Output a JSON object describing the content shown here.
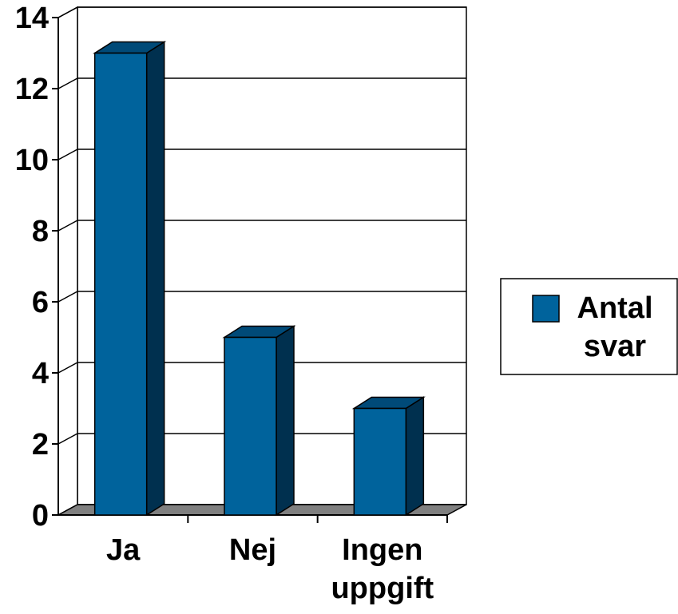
{
  "chart_data": {
    "type": "bar3d",
    "categories": [
      "Ja",
      "Nej",
      "Ingen uppgift"
    ],
    "series": [
      {
        "name": "Antal svar",
        "color": "#00639c",
        "values": [
          13,
          5,
          3
        ]
      }
    ],
    "ylim": [
      0,
      14
    ],
    "yticks": [
      0,
      2,
      4,
      6,
      8,
      10,
      12,
      14
    ],
    "grid": true,
    "legend": "right"
  }
}
